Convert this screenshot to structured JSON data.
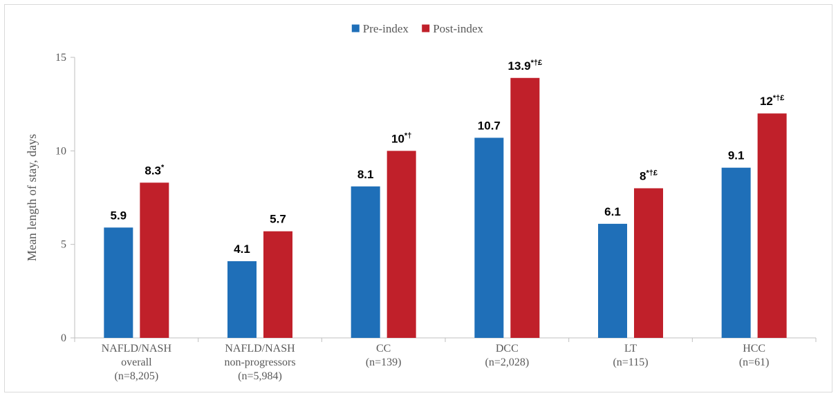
{
  "chart_data": {
    "type": "bar",
    "ylabel": "Mean length of stay, days",
    "ylim": [
      0,
      15
    ],
    "yticks": [
      0,
      5,
      10,
      15
    ],
    "grid": false,
    "legend_position": "top-center",
    "categories": [
      [
        "NAFLD/NASH",
        "overall",
        "(n=8,205)"
      ],
      [
        "NAFLD/NASH",
        "non-progressors",
        "(n=5,984)"
      ],
      [
        "CC",
        "(n=139)"
      ],
      [
        "DCC",
        "(n=2,028)"
      ],
      [
        "LT",
        "(n=115)"
      ],
      [
        "HCC",
        "(n=61)"
      ]
    ],
    "series": [
      {
        "name": "Pre-index",
        "color": "#1f6fb8",
        "values": [
          5.9,
          4.1,
          8.1,
          10.7,
          6.1,
          9.1
        ],
        "labels": [
          "5.9",
          "4.1",
          "8.1",
          "10.7",
          "6.1",
          "9.1"
        ],
        "superscripts": [
          "",
          "",
          "",
          "",
          "",
          ""
        ]
      },
      {
        "name": "Post-index",
        "color": "#c0202a",
        "values": [
          8.3,
          5.7,
          10,
          13.9,
          8,
          12
        ],
        "labels": [
          "8.3",
          "5.7",
          "10",
          "13.9",
          "8",
          "12"
        ],
        "superscripts": [
          "*",
          "",
          "*†",
          "*†£",
          "*†£",
          "*†£"
        ]
      }
    ]
  }
}
